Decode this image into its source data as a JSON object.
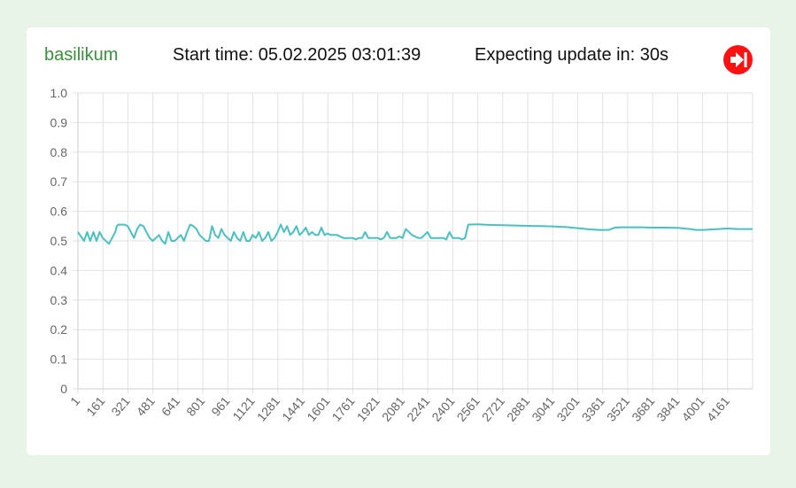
{
  "header": {
    "plant_name": "basilikum",
    "start_label": "Start time: 05.02.2025 03:01:39",
    "update_label": "Expecting update in: 30s",
    "skip_icon": "skip-forward-icon",
    "skip_color": "#ff1111"
  },
  "chart_data": {
    "type": "line",
    "title": "",
    "xlabel": "",
    "ylabel": "",
    "ylim": [
      0,
      1.0
    ],
    "xlim": [
      1,
      4321
    ],
    "yticks": [
      "0",
      "0.1",
      "0.2",
      "0.3",
      "0.4",
      "0.5",
      "0.6",
      "0.7",
      "0.8",
      "0.9",
      "1.0"
    ],
    "xticks": [
      "1",
      "161",
      "321",
      "481",
      "641",
      "801",
      "961",
      "1121",
      "1281",
      "1441",
      "1601",
      "1761",
      "1921",
      "2081",
      "2241",
      "2401",
      "2561",
      "2721",
      "2881",
      "3041",
      "3201",
      "3361",
      "3521",
      "3681",
      "3841",
      "4001",
      "4161"
    ],
    "grid": true,
    "legend": "none",
    "series": [
      {
        "color": "#4bc0c0",
        "x": [
          1,
          40,
          60,
          80,
          100,
          120,
          140,
          160,
          180,
          200,
          220,
          240,
          250,
          260,
          300,
          320,
          340,
          360,
          380,
          400,
          420,
          440,
          460,
          480,
          500,
          520,
          540,
          560,
          580,
          600,
          620,
          640,
          660,
          680,
          700,
          720,
          740,
          760,
          780,
          800,
          820,
          840,
          860,
          880,
          900,
          920,
          940,
          960,
          980,
          1000,
          1020,
          1040,
          1060,
          1080,
          1100,
          1120,
          1140,
          1160,
          1180,
          1200,
          1220,
          1240,
          1260,
          1280,
          1300,
          1320,
          1340,
          1360,
          1380,
          1400,
          1420,
          1440,
          1460,
          1480,
          1500,
          1520,
          1540,
          1560,
          1580,
          1600,
          1620,
          1640,
          1660,
          1680,
          1700,
          1720,
          1740,
          1760,
          1780,
          1800,
          1820,
          1840,
          1860,
          1880,
          1900,
          1920,
          1940,
          1960,
          1980,
          2000,
          2040,
          2060,
          2080,
          2100,
          2140,
          2160,
          2180,
          2200,
          2240,
          2260,
          2280,
          2300,
          2340,
          2360,
          2380,
          2400,
          2440,
          2460,
          2480,
          2500,
          2560,
          2640,
          2720,
          2800,
          2880,
          2960,
          3040,
          3120,
          3200,
          3280,
          3340,
          3400,
          3440,
          3480,
          3520,
          3600,
          3680,
          3760,
          3840,
          3920,
          3960,
          4000,
          4040,
          4100,
          4160,
          4220,
          4280,
          4321
        ],
        "y": [
          0.53,
          0.5,
          0.53,
          0.5,
          0.53,
          0.5,
          0.53,
          0.51,
          0.5,
          0.49,
          0.51,
          0.53,
          0.55,
          0.555,
          0.555,
          0.55,
          0.53,
          0.51,
          0.54,
          0.555,
          0.55,
          0.53,
          0.51,
          0.5,
          0.51,
          0.52,
          0.5,
          0.49,
          0.53,
          0.5,
          0.5,
          0.51,
          0.52,
          0.5,
          0.53,
          0.555,
          0.55,
          0.54,
          0.52,
          0.51,
          0.5,
          0.5,
          0.55,
          0.52,
          0.51,
          0.54,
          0.52,
          0.51,
          0.5,
          0.53,
          0.51,
          0.5,
          0.53,
          0.5,
          0.5,
          0.52,
          0.51,
          0.53,
          0.5,
          0.51,
          0.53,
          0.5,
          0.51,
          0.53,
          0.555,
          0.53,
          0.55,
          0.52,
          0.53,
          0.55,
          0.52,
          0.53,
          0.545,
          0.52,
          0.53,
          0.52,
          0.52,
          0.545,
          0.52,
          0.525,
          0.52,
          0.52,
          0.52,
          0.515,
          0.51,
          0.51,
          0.51,
          0.51,
          0.505,
          0.51,
          0.51,
          0.53,
          0.51,
          0.51,
          0.51,
          0.51,
          0.505,
          0.51,
          0.53,
          0.51,
          0.51,
          0.515,
          0.51,
          0.54,
          0.52,
          0.515,
          0.51,
          0.51,
          0.53,
          0.51,
          0.51,
          0.51,
          0.51,
          0.505,
          0.53,
          0.51,
          0.51,
          0.505,
          0.51,
          0.555,
          0.556,
          0.554,
          0.553,
          0.552,
          0.551,
          0.55,
          0.549,
          0.547,
          0.543,
          0.539,
          0.537,
          0.537,
          0.545,
          0.546,
          0.546,
          0.546,
          0.545,
          0.545,
          0.544,
          0.54,
          0.537,
          0.537,
          0.538,
          0.54,
          0.542,
          0.54,
          0.54,
          0.54
        ]
      }
    ]
  }
}
